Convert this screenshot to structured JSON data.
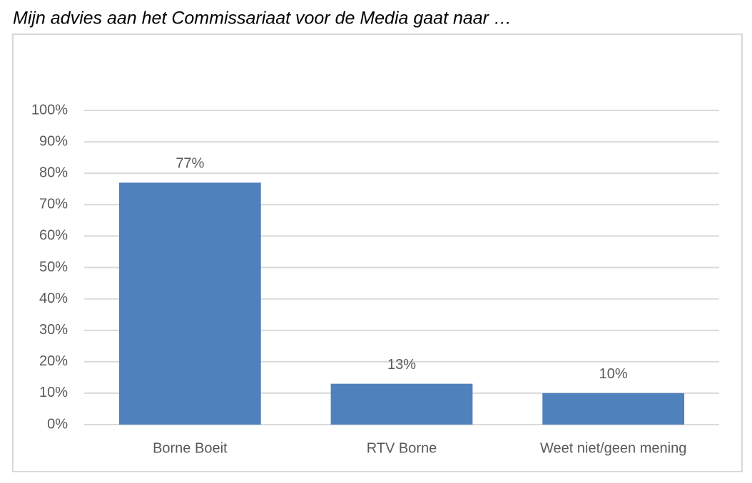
{
  "chart_data": {
    "type": "bar",
    "title": "Mijn advies aan het Commissariaat voor de Media gaat naar …",
    "categories": [
      "Borne Boeit",
      "RTV Borne",
      "Weet niet/geen mening"
    ],
    "values": [
      77,
      13,
      10
    ],
    "value_labels": [
      "77%",
      "13%",
      "10%"
    ],
    "color": "#4f81bd",
    "ylim": [
      0,
      100
    ],
    "yticks": [
      {
        "value": 0,
        "label": "0%"
      },
      {
        "value": 10,
        "label": "10%"
      },
      {
        "value": 20,
        "label": "20%"
      },
      {
        "value": 30,
        "label": "30%"
      },
      {
        "value": 40,
        "label": "40%"
      },
      {
        "value": 50,
        "label": "50%"
      },
      {
        "value": 60,
        "label": "60%"
      },
      {
        "value": 70,
        "label": "70%"
      },
      {
        "value": 80,
        "label": "80%"
      },
      {
        "value": 90,
        "label": "90%"
      },
      {
        "value": 100,
        "label": "100%"
      }
    ],
    "grid": true
  }
}
